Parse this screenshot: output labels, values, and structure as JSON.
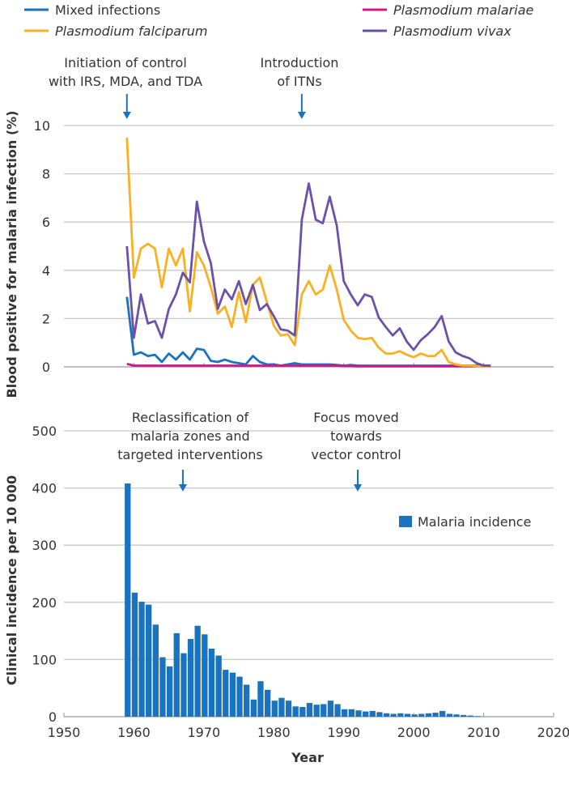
{
  "chart_data": [
    {
      "type": "line",
      "ylabel": "Blood positive for malaria infection (%)",
      "ylim": [
        0,
        10
      ],
      "yticks": [
        "0",
        "2",
        "4",
        "6",
        "8",
        "10"
      ],
      "xlim": [
        1950,
        2020
      ],
      "grid": true,
      "legend_position": "top",
      "x": [
        1959,
        1960,
        1961,
        1962,
        1963,
        1964,
        1965,
        1966,
        1967,
        1968,
        1969,
        1970,
        1971,
        1972,
        1973,
        1974,
        1975,
        1976,
        1977,
        1978,
        1979,
        1980,
        1981,
        1982,
        1983,
        1984,
        1985,
        1986,
        1987,
        1988,
        1989,
        1990,
        1991,
        1992,
        1993,
        1994,
        1995,
        1996,
        1997,
        1998,
        1999,
        2000,
        2001,
        2002,
        2003,
        2004,
        2005,
        2006,
        2007,
        2008,
        2009,
        2010,
        2011
      ],
      "series": [
        {
          "name": "Mixed infections",
          "italic": false,
          "color": "#1a73c0",
          "values": [
            2.9,
            0.5,
            0.6,
            0.45,
            0.5,
            0.2,
            0.55,
            0.3,
            0.6,
            0.3,
            0.75,
            0.7,
            0.25,
            0.2,
            0.3,
            0.2,
            0.15,
            0.1,
            0.45,
            0.2,
            0.1,
            0.1,
            0.05,
            0.1,
            0.15,
            0.1,
            0.1,
            0.1,
            0.1,
            0.1,
            0.08,
            0.05,
            0.08,
            0.05,
            0.05,
            0.05,
            0.05,
            0.05,
            0.05,
            0.05,
            0.05,
            0.05,
            0.05,
            0.05,
            0.05,
            0.05,
            0.05,
            0.05,
            0.05,
            0.05,
            0.05,
            0.05,
            0.05
          ]
        },
        {
          "name": "Plasmodium malariae",
          "italic": true,
          "color": "#d4148c",
          "values": [
            0.12,
            0.05,
            0.05,
            0.05,
            0.05,
            0.05,
            0.05,
            0.05,
            0.05,
            0.05,
            0.05,
            0.05,
            0.05,
            0.05,
            0.05,
            0.05,
            0.05,
            0.05,
            0.05,
            0.05,
            0.05,
            0.05,
            0.05,
            0.05,
            0.05,
            0.05,
            0.05,
            0.05,
            0.05,
            0.05,
            0.05,
            0.03,
            0.03,
            0.02,
            0.02,
            0.02,
            0.02,
            0.02,
            0.02,
            0.02,
            0.02,
            0.02,
            0.02,
            0.02,
            0.02,
            0.02,
            0.02,
            0.02,
            0.02,
            0.02,
            0.02,
            0.02,
            0.02
          ]
        },
        {
          "name": "Plasmodium falciparum",
          "italic": true,
          "color": "#fbb023",
          "values": [
            9.5,
            3.7,
            4.9,
            5.1,
            4.9,
            3.3,
            4.9,
            4.2,
            4.9,
            2.3,
            4.75,
            4.2,
            3.3,
            2.2,
            2.5,
            1.65,
            3.1,
            1.85,
            3.4,
            3.7,
            2.7,
            1.7,
            1.3,
            1.35,
            0.9,
            3.0,
            3.55,
            3.0,
            3.2,
            4.2,
            3.2,
            1.95,
            1.5,
            1.2,
            1.15,
            1.2,
            0.8,
            0.55,
            0.55,
            0.65,
            0.5,
            0.4,
            0.55,
            0.45,
            0.45,
            0.7,
            0.2,
            0.1,
            0.05,
            0.05,
            0.03,
            0.02,
            0.0
          ]
        },
        {
          "name": "Plasmodium vivax",
          "italic": true,
          "color": "#6b52a8",
          "values": [
            5.0,
            1.2,
            3.0,
            1.8,
            1.9,
            1.2,
            2.4,
            3.0,
            3.9,
            3.5,
            6.85,
            5.2,
            4.3,
            2.4,
            3.2,
            2.8,
            3.55,
            2.6,
            3.4,
            2.35,
            2.6,
            2.1,
            1.55,
            1.5,
            1.3,
            6.1,
            7.6,
            6.1,
            5.95,
            7.05,
            5.85,
            3.55,
            3.0,
            2.55,
            3.0,
            2.9,
            2.05,
            1.65,
            1.3,
            1.6,
            1.05,
            0.7,
            1.1,
            1.35,
            1.65,
            2.1,
            1.05,
            0.6,
            0.45,
            0.35,
            0.15,
            0.05,
            0.05
          ]
        }
      ],
      "annotations": [
        {
          "lines": [
            "Initiation of control",
            "with IRS, MDA, and TDA"
          ],
          "year": 1959
        },
        {
          "lines": [
            "Introduction",
            "of ITNs"
          ],
          "year": 1984
        }
      ]
    },
    {
      "type": "bar",
      "xlabel": "Year",
      "ylabel": "Clinical incidence per 10 000",
      "ylim": [
        0,
        500
      ],
      "yticks": [
        "0",
        "100",
        "200",
        "300",
        "400",
        "500"
      ],
      "xlim": [
        1950,
        2020
      ],
      "xticks": [
        "1950",
        "1960",
        "1970",
        "1980",
        "1990",
        "2000",
        "2010",
        "2020"
      ],
      "grid": true,
      "legend_position": "top-right",
      "series_name": "Malaria incidence",
      "color": "#1a73c0",
      "x": [
        1959,
        1960,
        1961,
        1962,
        1963,
        1964,
        1965,
        1966,
        1967,
        1968,
        1969,
        1970,
        1971,
        1972,
        1973,
        1974,
        1975,
        1976,
        1977,
        1978,
        1979,
        1980,
        1981,
        1982,
        1983,
        1984,
        1985,
        1986,
        1987,
        1988,
        1989,
        1990,
        1991,
        1992,
        1993,
        1994,
        1995,
        1996,
        1997,
        1998,
        1999,
        2000,
        2001,
        2002,
        2003,
        2004,
        2005,
        2006,
        2007,
        2008,
        2009
      ],
      "values": [
        408,
        217,
        201,
        196,
        161,
        104,
        88,
        146,
        111,
        136,
        159,
        144,
        119,
        107,
        82,
        77,
        70,
        56,
        30,
        62,
        47,
        28,
        33,
        28,
        18,
        17,
        24,
        21,
        22,
        28,
        22,
        13,
        13,
        11,
        9,
        10,
        8,
        6,
        5,
        6,
        5,
        4,
        5,
        6,
        7,
        10,
        5,
        4,
        3,
        2,
        1
      ],
      "annotations": [
        {
          "lines": [
            "Reclassification of",
            "malaria zones and",
            "targeted interventions"
          ],
          "year": 1967
        },
        {
          "lines": [
            "Focus moved",
            "towards",
            "vector control"
          ],
          "year": 1992
        }
      ]
    }
  ]
}
